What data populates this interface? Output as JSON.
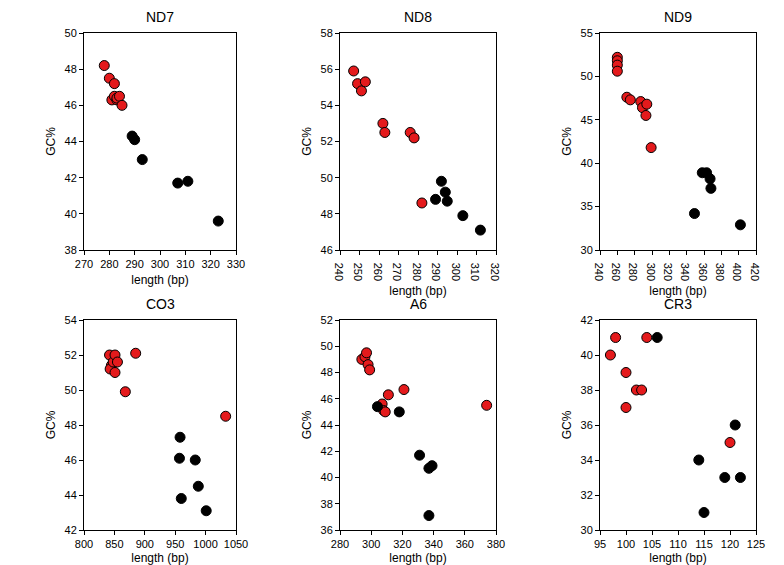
{
  "chart_data": [
    {
      "type": "scatter",
      "title": "ND7",
      "x_label": "length (bp)",
      "y_label": "GC%",
      "xlim": [
        270,
        330
      ],
      "xticks": [
        270,
        280,
        290,
        300,
        310,
        320,
        330
      ],
      "ylim": [
        38,
        50
      ],
      "yticks": [
        38,
        40,
        42,
        44,
        46,
        48,
        50
      ],
      "series": [
        {
          "color": "#e41a1c",
          "x": [
            278,
            280,
            281,
            282,
            282,
            283,
            283,
            284,
            285
          ],
          "y": [
            48.2,
            47.5,
            46.3,
            47.2,
            46.5,
            46.3,
            46.4,
            46.5,
            46.0
          ]
        },
        {
          "color": "#000000",
          "x": [
            289,
            290,
            293,
            307,
            311,
            323
          ],
          "y": [
            44.3,
            44.1,
            43.0,
            41.7,
            41.8,
            39.6
          ]
        }
      ]
    },
    {
      "type": "scatter",
      "title": "ND8",
      "x_label": "length (bp)",
      "y_label": "GC%",
      "xlim": [
        240,
        320
      ],
      "xticks": [
        240,
        250,
        260,
        270,
        280,
        290,
        300,
        310,
        320
      ],
      "ylim": [
        46,
        58
      ],
      "yticks": [
        46,
        48,
        50,
        52,
        54,
        56,
        58
      ],
      "series": [
        {
          "color": "#e41a1c",
          "x": [
            247,
            249,
            251,
            253,
            262,
            263,
            276,
            278,
            282
          ],
          "y": [
            55.9,
            55.2,
            54.8,
            55.3,
            53.0,
            52.5,
            52.5,
            52.2,
            48.6
          ]
        },
        {
          "color": "#000000",
          "x": [
            289,
            292,
            294,
            295,
            303,
            312
          ],
          "y": [
            48.8,
            49.8,
            49.2,
            48.7,
            47.9,
            47.1
          ]
        }
      ]
    },
    {
      "type": "scatter",
      "title": "ND9",
      "x_label": "length (bp)",
      "y_label": "GC%",
      "xlim": [
        240,
        420
      ],
      "xticks": [
        240,
        260,
        280,
        300,
        320,
        340,
        360,
        380,
        400,
        420
      ],
      "ylim": [
        30,
        55
      ],
      "yticks": [
        30,
        35,
        40,
        45,
        50,
        55
      ],
      "series": [
        {
          "color": "#e41a1c",
          "x": [
            260,
            260,
            260,
            260,
            271,
            275,
            287,
            289,
            294,
            293,
            299
          ],
          "y": [
            52.2,
            51.8,
            51.3,
            50.6,
            47.6,
            47.3,
            47.1,
            46.4,
            46.8,
            45.5,
            41.8
          ]
        },
        {
          "color": "#000000",
          "x": [
            349,
            358,
            363,
            367,
            368,
            402
          ],
          "y": [
            34.2,
            38.9,
            38.9,
            38.2,
            37.1,
            32.9
          ]
        }
      ]
    },
    {
      "type": "scatter",
      "title": "CO3",
      "x_label": "length (bp)",
      "y_label": "GC%",
      "xlim": [
        800,
        1050
      ],
      "xticks": [
        800,
        850,
        900,
        950,
        1000,
        1050
      ],
      "ylim": [
        42,
        54
      ],
      "yticks": [
        42,
        44,
        46,
        48,
        50,
        52,
        54
      ],
      "series": [
        {
          "color": "#e41a1c",
          "x": [
            842,
            845,
            843,
            848,
            851,
            851,
            855,
            868,
            885,
            1033
          ],
          "y": [
            52.0,
            51.4,
            51.2,
            51.6,
            52.0,
            51.0,
            51.6,
            49.9,
            52.1,
            48.5
          ]
        },
        {
          "color": "#000000",
          "x": [
            957,
            958,
            960,
            983,
            988,
            1001
          ],
          "y": [
            46.1,
            47.3,
            43.8,
            46.0,
            44.5,
            43.1
          ]
        }
      ]
    },
    {
      "type": "scatter",
      "title": "A6",
      "x_label": "length (bp)",
      "y_label": "GC%",
      "xlim": [
        280,
        380
      ],
      "xticks": [
        280,
        300,
        320,
        340,
        360,
        380
      ],
      "ylim": [
        36,
        52
      ],
      "yticks": [
        36,
        38,
        40,
        42,
        44,
        46,
        48,
        50,
        52
      ],
      "series": [
        {
          "color": "#e41a1c",
          "x": [
            294,
            296,
            297,
            298,
            299,
            307,
            308,
            309,
            311,
            321,
            374
          ],
          "y": [
            49.0,
            49.2,
            49.5,
            48.6,
            48.2,
            45.6,
            45.1,
            45.0,
            46.3,
            46.7,
            45.5
          ]
        },
        {
          "color": "#000000",
          "x": [
            304,
            318,
            331,
            337,
            339,
            337
          ],
          "y": [
            45.4,
            45.0,
            41.7,
            40.7,
            40.9,
            37.1
          ]
        }
      ]
    },
    {
      "type": "scatter",
      "title": "CR3",
      "x_label": "length (bp)",
      "y_label": "GC%",
      "xlim": [
        95,
        125
      ],
      "xticks": [
        95,
        100,
        105,
        110,
        115,
        120,
        125
      ],
      "ylim": [
        30,
        42
      ],
      "yticks": [
        30,
        32,
        34,
        36,
        38,
        40,
        42
      ],
      "series": [
        {
          "color": "#e41a1c",
          "x": [
            97,
            98,
            100,
            100,
            102,
            103,
            104,
            120
          ],
          "y": [
            40,
            41,
            39,
            37,
            38,
            38,
            41,
            35
          ]
        },
        {
          "color": "#000000",
          "x": [
            106,
            114,
            115,
            119,
            121,
            122
          ],
          "y": [
            41,
            34,
            31,
            33,
            36,
            33
          ]
        }
      ]
    }
  ]
}
